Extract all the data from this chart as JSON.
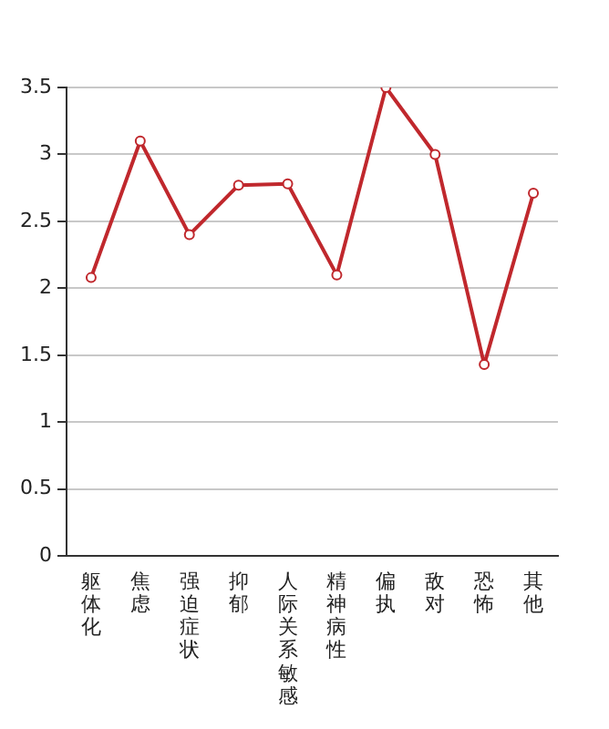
{
  "chart_data": {
    "type": "line",
    "categories": [
      "躯体化",
      "焦虑",
      "强迫症状",
      "抑郁",
      "人际关系敏感",
      "精神病性",
      "偏执",
      "敌对",
      "恐怖",
      "其他"
    ],
    "series": [
      {
        "color": "#c0282d",
        "values": [
          2.08,
          3.1,
          2.4,
          2.77,
          2.78,
          2.1,
          3.5,
          3.0,
          1.43,
          2.71
        ]
      }
    ],
    "ylim": [
      0,
      3.5
    ],
    "yticks": [
      0,
      0.5,
      1,
      1.5,
      2,
      2.5,
      3,
      3.5
    ],
    "grid": "y",
    "legend": false,
    "marker": "circle",
    "line_style": "solid"
  }
}
